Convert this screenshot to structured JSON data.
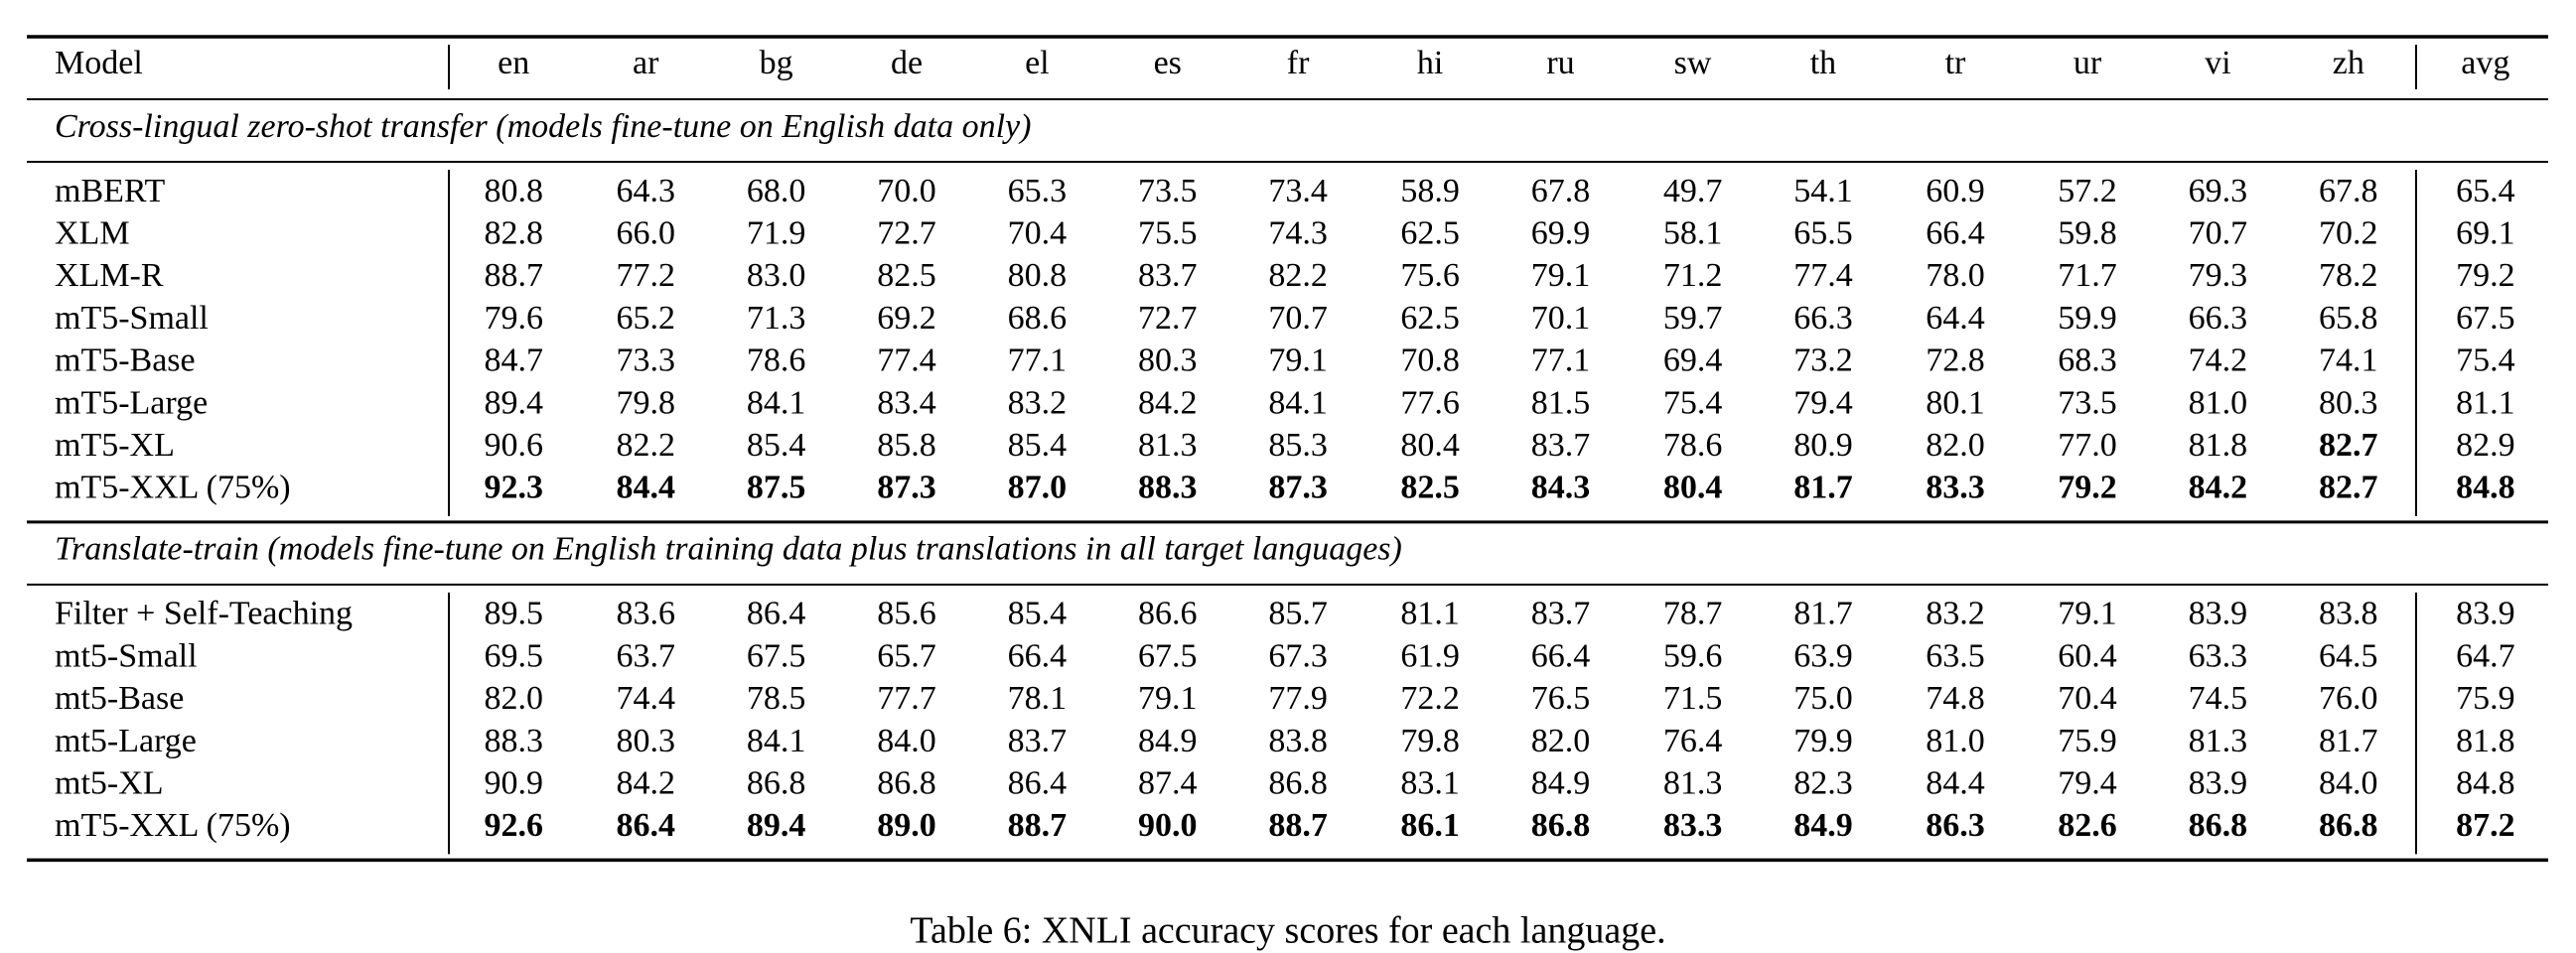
{
  "table": {
    "header": [
      "Model",
      "en",
      "ar",
      "bg",
      "de",
      "el",
      "es",
      "fr",
      "hi",
      "ru",
      "sw",
      "th",
      "tr",
      "ur",
      "vi",
      "zh",
      "avg"
    ],
    "sections": [
      {
        "title": "Cross-lingual zero-shot transfer (models fine-tune on English data only)",
        "rows": [
          {
            "model": "mBERT",
            "scores": [
              "80.8",
              "64.3",
              "68.0",
              "70.0",
              "65.3",
              "73.5",
              "73.4",
              "58.9",
              "67.8",
              "49.7",
              "54.1",
              "60.9",
              "57.2",
              "69.3",
              "67.8",
              "65.4"
            ]
          },
          {
            "model": "XLM",
            "scores": [
              "82.8",
              "66.0",
              "71.9",
              "72.7",
              "70.4",
              "75.5",
              "74.3",
              "62.5",
              "69.9",
              "58.1",
              "65.5",
              "66.4",
              "59.8",
              "70.7",
              "70.2",
              "69.1"
            ]
          },
          {
            "model": "XLM-R",
            "scores": [
              "88.7",
              "77.2",
              "83.0",
              "82.5",
              "80.8",
              "83.7",
              "82.2",
              "75.6",
              "79.1",
              "71.2",
              "77.4",
              "78.0",
              "71.7",
              "79.3",
              "78.2",
              "79.2"
            ]
          },
          {
            "model": "mT5-Small",
            "scores": [
              "79.6",
              "65.2",
              "71.3",
              "69.2",
              "68.6",
              "72.7",
              "70.7",
              "62.5",
              "70.1",
              "59.7",
              "66.3",
              "64.4",
              "59.9",
              "66.3",
              "65.8",
              "67.5"
            ]
          },
          {
            "model": "mT5-Base",
            "scores": [
              "84.7",
              "73.3",
              "78.6",
              "77.4",
              "77.1",
              "80.3",
              "79.1",
              "70.8",
              "77.1",
              "69.4",
              "73.2",
              "72.8",
              "68.3",
              "74.2",
              "74.1",
              "75.4"
            ]
          },
          {
            "model": "mT5-Large",
            "scores": [
              "89.4",
              "79.8",
              "84.1",
              "83.4",
              "83.2",
              "84.2",
              "84.1",
              "77.6",
              "81.5",
              "75.4",
              "79.4",
              "80.1",
              "73.5",
              "81.0",
              "80.3",
              "81.1"
            ]
          },
          {
            "model": "mT5-XL",
            "scores": [
              "90.6",
              "82.2",
              "85.4",
              "85.8",
              "85.4",
              "81.3",
              "85.3",
              "80.4",
              "83.7",
              "78.6",
              "80.9",
              "82.0",
              "77.0",
              "81.8",
              "82.7",
              "82.9"
            ],
            "bold_scores": [
              14
            ]
          },
          {
            "model": "mT5-XXL (75%)",
            "scores": [
              "92.3",
              "84.4",
              "87.5",
              "87.3",
              "87.0",
              "88.3",
              "87.3",
              "82.5",
              "84.3",
              "80.4",
              "81.7",
              "83.3",
              "79.2",
              "84.2",
              "82.7",
              "84.8"
            ],
            "bold": true
          }
        ]
      },
      {
        "title": "Translate-train (models fine-tune on English training data plus translations in all target languages)",
        "rows": [
          {
            "model": "Filter + Self-Teaching",
            "scores": [
              "89.5",
              "83.6",
              "86.4",
              "85.6",
              "85.4",
              "86.6",
              "85.7",
              "81.1",
              "83.7",
              "78.7",
              "81.7",
              "83.2",
              "79.1",
              "83.9",
              "83.8",
              "83.9"
            ]
          },
          {
            "model": "mt5-Small",
            "scores": [
              "69.5",
              "63.7",
              "67.5",
              "65.7",
              "66.4",
              "67.5",
              "67.3",
              "61.9",
              "66.4",
              "59.6",
              "63.9",
              "63.5",
              "60.4",
              "63.3",
              "64.5",
              "64.7"
            ]
          },
          {
            "model": "mt5-Base",
            "scores": [
              "82.0",
              "74.4",
              "78.5",
              "77.7",
              "78.1",
              "79.1",
              "77.9",
              "72.2",
              "76.5",
              "71.5",
              "75.0",
              "74.8",
              "70.4",
              "74.5",
              "76.0",
              "75.9"
            ]
          },
          {
            "model": "mt5-Large",
            "scores": [
              "88.3",
              "80.3",
              "84.1",
              "84.0",
              "83.7",
              "84.9",
              "83.8",
              "79.8",
              "82.0",
              "76.4",
              "79.9",
              "81.0",
              "75.9",
              "81.3",
              "81.7",
              "81.8"
            ]
          },
          {
            "model": "mt5-XL",
            "scores": [
              "90.9",
              "84.2",
              "86.8",
              "86.8",
              "86.4",
              "87.4",
              "86.8",
              "83.1",
              "84.9",
              "81.3",
              "82.3",
              "84.4",
              "79.4",
              "83.9",
              "84.0",
              "84.8"
            ]
          },
          {
            "model": "mT5-XXL (75%)",
            "scores": [
              "92.6",
              "86.4",
              "89.4",
              "89.0",
              "88.7",
              "90.0",
              "88.7",
              "86.1",
              "86.8",
              "83.3",
              "84.9",
              "86.3",
              "82.6",
              "86.8",
              "86.8",
              "87.2"
            ],
            "bold": true
          }
        ]
      }
    ],
    "caption": "Table 6: XNLI accuracy scores for each language."
  }
}
